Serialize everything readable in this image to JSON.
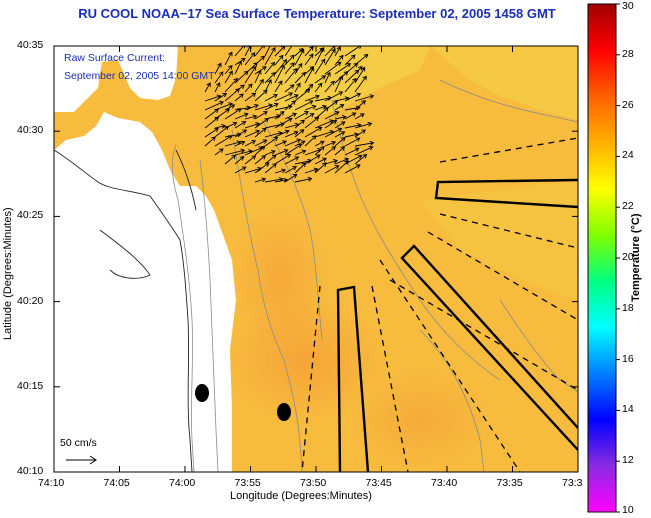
{
  "title": "RU COOL  NOAA−17  Sea Surface Temperature:  September 02, 2005 1458 GMT",
  "current_legend": {
    "line1": "Raw Surface Current:",
    "line2": "September 02, 2005 14:00 GMT"
  },
  "scale": {
    "label": "50 cm/s"
  },
  "x_axis": {
    "title": "Longitude (Degrees:Minutes)",
    "ticks": [
      "74:10",
      "74:05",
      "74:00",
      "73:55",
      "73:50",
      "73:45",
      "73:40",
      "73:35",
      "73:3"
    ]
  },
  "y_axis": {
    "title": "Latitude (Degrees:Minutes)",
    "ticks": [
      "40:35",
      "40:30",
      "40:25",
      "40:20",
      "40:15",
      "40:10"
    ]
  },
  "colorbar": {
    "title": "Temperature (°C)",
    "ticks": [
      "30",
      "28",
      "26",
      "24",
      "22",
      "20",
      "18",
      "16",
      "14",
      "12",
      "10"
    ],
    "range": [
      10,
      30
    ],
    "colors": [
      "#ff00ff",
      "#8a2be2",
      "#0000ff",
      "#0080ff",
      "#00ffff",
      "#00ff80",
      "#80ff00",
      "#ffff00",
      "#ffb000",
      "#ff6000",
      "#ff0000",
      "#a00000"
    ]
  },
  "colors": {
    "sea_warm": "#f5a93a",
    "sea_mid": "#f7bf3d",
    "sea_cool": "#f3d24a",
    "land": "#ffffff",
    "title_blue": "#1a2fb5"
  }
}
